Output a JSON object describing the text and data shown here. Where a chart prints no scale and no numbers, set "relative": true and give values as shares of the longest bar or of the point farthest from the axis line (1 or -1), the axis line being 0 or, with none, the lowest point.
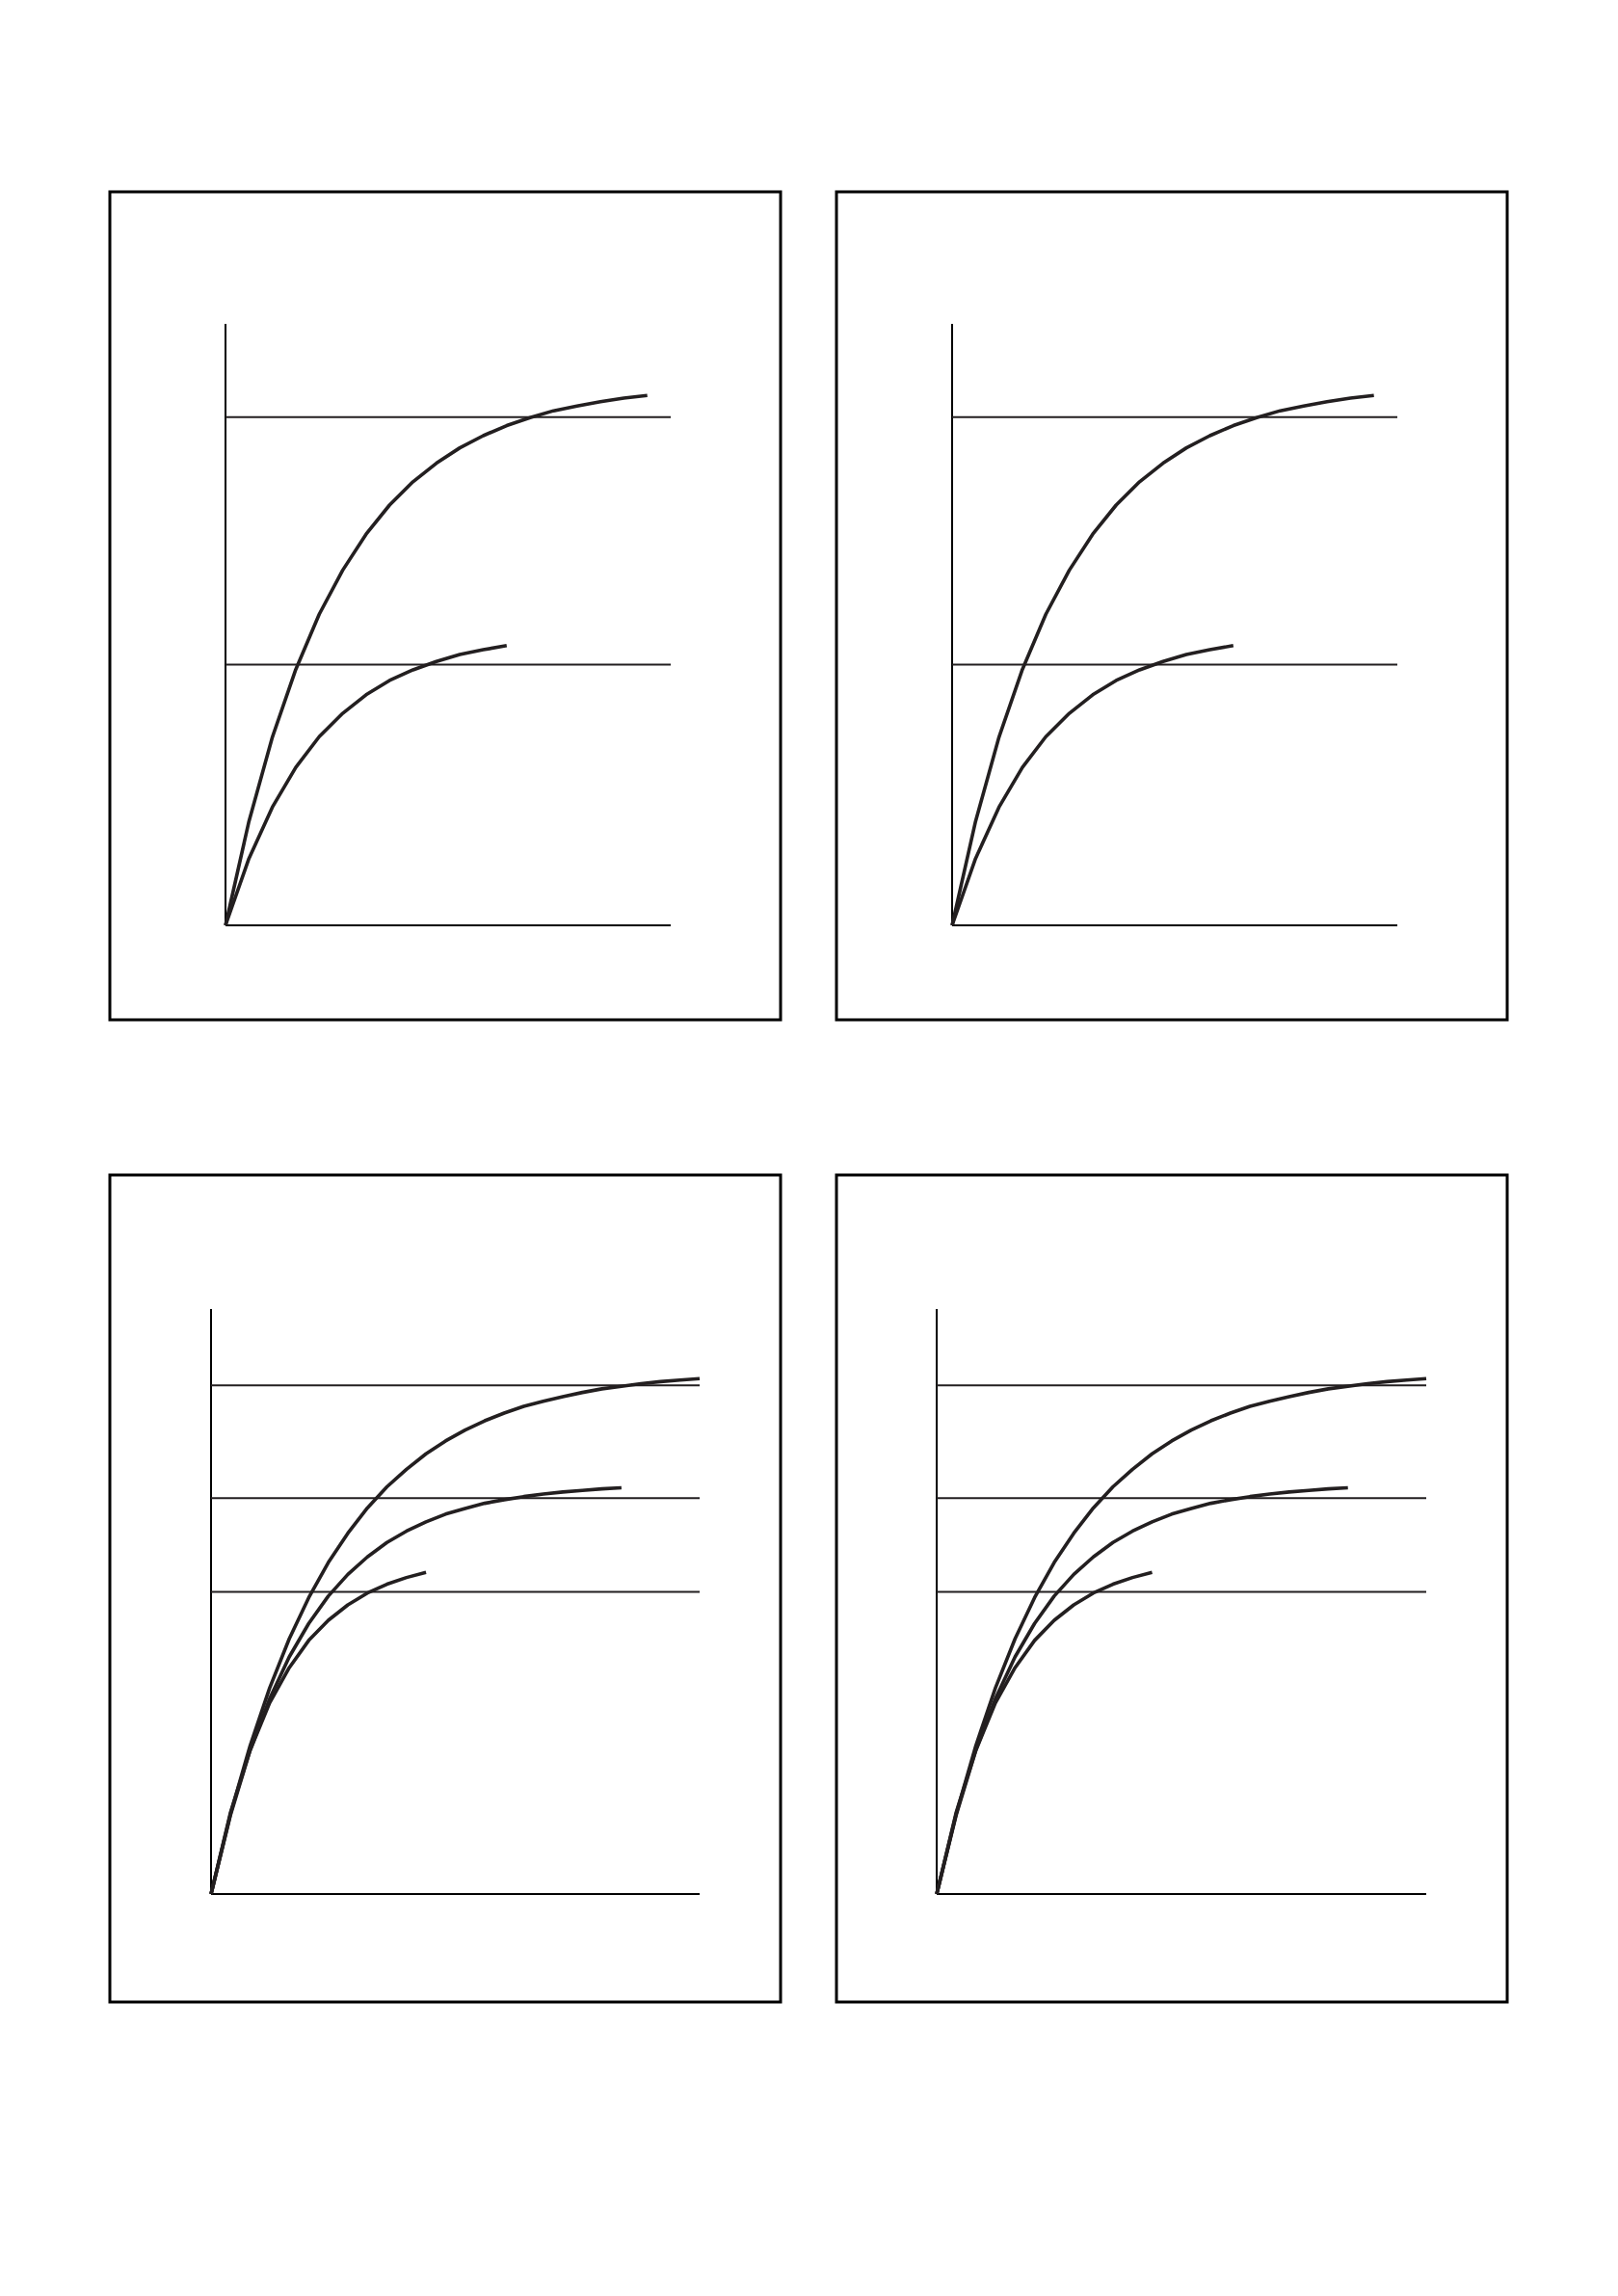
{
  "chart_data": [
    {
      "type": "line",
      "relative": true,
      "categories": [
        null,
        null,
        null,
        null,
        null,
        null,
        null,
        null,
        null,
        null,
        null,
        null,
        null,
        null,
        null,
        null,
        null,
        null,
        null,
        null
      ],
      "series": [
        {
          "color": "#231f20",
          "values": [
            0,
            0.196,
            0.355,
            0.483,
            0.587,
            0.67,
            0.738,
            0.793,
            0.837,
            0.872,
            0.901,
            0.924,
            0.943,
            0.958,
            0.971,
            0.98,
            0.988,
            0.995,
            1.0,
            null
          ]
        },
        {
          "color": "#231f20",
          "values": [
            0,
            0.126,
            0.223,
            0.298,
            0.356,
            0.4,
            0.435,
            0.462,
            0.482,
            0.498,
            0.511,
            0.52,
            0.528,
            null,
            null,
            null,
            null,
            null,
            null,
            null
          ]
        }
      ],
      "ref_lines": [
        {
          "axis": "y",
          "value": 0.959,
          "color": "#231f20"
        },
        {
          "axis": "y",
          "value": 0.492,
          "color": "#231f20"
        }
      ]
    },
    {
      "type": "line",
      "relative": true,
      "categories": [
        null,
        null,
        null,
        null,
        null,
        null,
        null,
        null,
        null,
        null,
        null,
        null,
        null,
        null,
        null,
        null,
        null,
        null,
        null,
        null
      ],
      "series": [
        {
          "color": "#231f20",
          "values": [
            0,
            0.196,
            0.355,
            0.483,
            0.587,
            0.67,
            0.738,
            0.793,
            0.837,
            0.872,
            0.901,
            0.924,
            0.943,
            0.958,
            0.971,
            0.98,
            0.988,
            0.995,
            1.0,
            null
          ]
        },
        {
          "color": "#231f20",
          "values": [
            0,
            0.126,
            0.223,
            0.298,
            0.356,
            0.4,
            0.435,
            0.462,
            0.482,
            0.498,
            0.511,
            0.52,
            0.528,
            null,
            null,
            null,
            null,
            null,
            null,
            null
          ]
        }
      ],
      "ref_lines": [
        {
          "axis": "y",
          "value": 0.959,
          "color": "#231f20"
        },
        {
          "axis": "y",
          "value": 0.492,
          "color": "#231f20"
        }
      ]
    },
    {
      "type": "line",
      "relative": true,
      "categories": [
        null,
        null,
        null,
        null,
        null,
        null,
        null,
        null,
        null,
        null,
        null,
        null,
        null,
        null,
        null,
        null,
        null,
        null,
        null,
        null,
        null,
        null,
        null,
        null,
        null,
        null
      ],
      "series": [
        {
          "color": "#231f20",
          "values": [
            0,
            0.156,
            0.288,
            0.4,
            0.495,
            0.575,
            0.643,
            0.7,
            0.749,
            0.79,
            0.824,
            0.854,
            0.879,
            0.9,
            0.918,
            0.933,
            0.946,
            0.956,
            0.965,
            0.973,
            0.98,
            0.985,
            0.99,
            0.994,
            0.997,
            1.0
          ]
        },
        {
          "color": "#231f20",
          "values": [
            0,
            0.154,
            0.279,
            0.379,
            0.46,
            0.525,
            0.578,
            0.62,
            0.654,
            0.682,
            0.704,
            0.722,
            0.737,
            0.748,
            0.758,
            0.765,
            0.771,
            0.776,
            0.78,
            0.783,
            0.786,
            0.788,
            null,
            null,
            null,
            null
          ]
        },
        {
          "color": "#231f20",
          "values": [
            0,
            0.159,
            0.279,
            0.371,
            0.439,
            0.492,
            0.531,
            0.561,
            0.584,
            0.601,
            0.614,
            0.624,
            null,
            null,
            null,
            null,
            null,
            null,
            null,
            null,
            null,
            null,
            null,
            null,
            null,
            null
          ]
        }
      ],
      "ref_lines": [
        {
          "axis": "y",
          "value": 0.987,
          "color": "#231f20"
        },
        {
          "axis": "y",
          "value": 0.768,
          "color": "#231f20"
        },
        {
          "axis": "y",
          "value": 0.586,
          "color": "#231f20"
        }
      ]
    },
    {
      "type": "line",
      "relative": true,
      "categories": [
        null,
        null,
        null,
        null,
        null,
        null,
        null,
        null,
        null,
        null,
        null,
        null,
        null,
        null,
        null,
        null,
        null,
        null,
        null,
        null,
        null,
        null,
        null,
        null,
        null,
        null
      ],
      "series": [
        {
          "color": "#231f20",
          "values": [
            0,
            0.156,
            0.288,
            0.4,
            0.495,
            0.575,
            0.643,
            0.7,
            0.749,
            0.79,
            0.824,
            0.854,
            0.879,
            0.9,
            0.918,
            0.933,
            0.946,
            0.956,
            0.965,
            0.973,
            0.98,
            0.985,
            0.99,
            0.994,
            0.997,
            1.0
          ]
        },
        {
          "color": "#231f20",
          "values": [
            0,
            0.154,
            0.279,
            0.379,
            0.46,
            0.525,
            0.578,
            0.62,
            0.654,
            0.682,
            0.704,
            0.722,
            0.737,
            0.748,
            0.758,
            0.765,
            0.771,
            0.776,
            0.78,
            0.783,
            0.786,
            0.788,
            null,
            null,
            null,
            null
          ]
        },
        {
          "color": "#231f20",
          "values": [
            0,
            0.159,
            0.279,
            0.371,
            0.439,
            0.492,
            0.531,
            0.561,
            0.584,
            0.601,
            0.614,
            0.624,
            null,
            null,
            null,
            null,
            null,
            null,
            null,
            null,
            null,
            null,
            null,
            null,
            null,
            null
          ]
        }
      ],
      "ref_lines": [
        {
          "axis": "y",
          "value": 0.987,
          "color": "#231f20"
        },
        {
          "axis": "y",
          "value": 0.768,
          "color": "#231f20"
        },
        {
          "axis": "y",
          "value": 0.586,
          "color": "#231f20"
        }
      ]
    }
  ]
}
